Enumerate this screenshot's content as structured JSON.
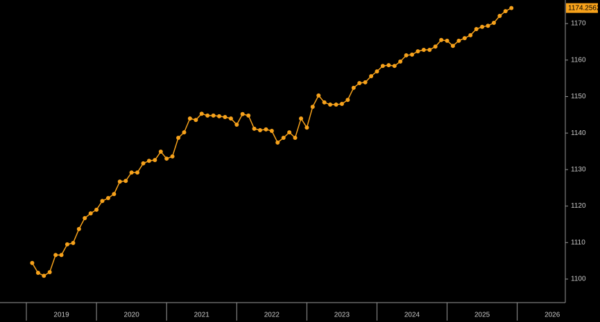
{
  "chart_data": {
    "type": "line",
    "x": [
      2019.083,
      2019.167,
      2019.25,
      2019.333,
      2019.417,
      2019.5,
      2019.583,
      2019.667,
      2019.75,
      2019.833,
      2019.917,
      2020.0,
      2020.083,
      2020.167,
      2020.25,
      2020.333,
      2020.417,
      2020.5,
      2020.583,
      2020.667,
      2020.75,
      2020.833,
      2020.917,
      2021.0,
      2021.083,
      2021.167,
      2021.25,
      2021.333,
      2021.417,
      2021.5,
      2021.583,
      2021.667,
      2021.75,
      2021.833,
      2021.917,
      2022.0,
      2022.083,
      2022.167,
      2022.25,
      2022.333,
      2022.417,
      2022.5,
      2022.583,
      2022.667,
      2022.75,
      2022.833,
      2022.917,
      2023.0,
      2023.083,
      2023.167,
      2023.25,
      2023.333,
      2023.417,
      2023.5,
      2023.583,
      2023.667,
      2023.75,
      2023.833,
      2023.917,
      2024.0,
      2024.083,
      2024.167,
      2024.25,
      2024.333,
      2024.417,
      2024.5,
      2024.583,
      2024.667,
      2024.75,
      2024.833,
      2024.917,
      2025.0,
      2025.083,
      2025.167,
      2025.25,
      2025.333,
      2025.417,
      2025.5,
      2025.583,
      2025.667,
      2025.75,
      2025.833,
      2025.917
    ],
    "series": [
      {
        "color": "#f7a21b",
        "values": [
          1104.4,
          1101.7,
          1100.9,
          1101.9,
          1106.6,
          1106.6,
          1109.5,
          1109.9,
          1113.7,
          1116.7,
          1118.0,
          1119.0,
          1121.4,
          1122.2,
          1123.3,
          1126.7,
          1126.9,
          1129.2,
          1129.2,
          1131.7,
          1132.4,
          1132.6,
          1134.9,
          1133.0,
          1133.6,
          1138.7,
          1140.2,
          1144.0,
          1143.6,
          1145.3,
          1144.8,
          1144.8,
          1144.6,
          1144.4,
          1144.0,
          1142.3,
          1145.2,
          1144.8,
          1141.2,
          1140.8,
          1141.0,
          1140.6,
          1137.4,
          1138.7,
          1140.2,
          1138.7,
          1144.0,
          1141.5,
          1147.2,
          1150.3,
          1148.4,
          1147.8,
          1147.8,
          1148.0,
          1149.1,
          1152.4,
          1153.7,
          1153.9,
          1155.6,
          1156.9,
          1158.4,
          1158.6,
          1158.4,
          1159.6,
          1161.3,
          1161.5,
          1162.4,
          1162.8,
          1162.8,
          1163.7,
          1165.5,
          1165.3,
          1163.9,
          1165.3,
          1166.0,
          1166.8,
          1168.5,
          1169.1,
          1169.4,
          1170.2,
          1172.1,
          1173.4,
          1174.2562
        ]
      }
    ],
    "xlim": [
      2018.624,
      2026.686
    ],
    "xticks": [
      2019,
      2020,
      2021,
      2022,
      2023,
      2024,
      2025,
      2026
    ],
    "ylim": [
      1092.98,
      1176.46
    ],
    "yticks": [
      1100,
      1110,
      1120,
      1130,
      1140,
      1150,
      1160,
      1170
    ],
    "grid": false
  }
}
